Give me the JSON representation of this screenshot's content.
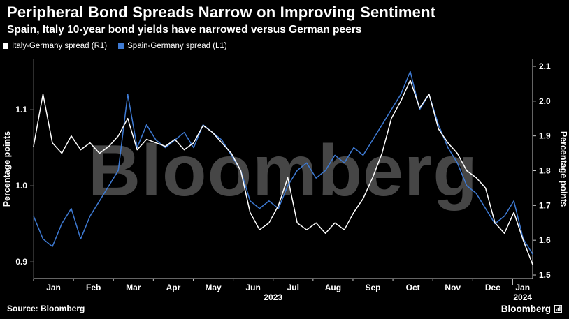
{
  "header": {
    "title": "Peripheral Bond Spreads Narrow on Improving Sentiment",
    "subtitle": "Spain, Italy 10-year bond yields have narrowed versus German peers"
  },
  "legend": [
    {
      "label": "Italy-Germany spread (R1)",
      "color": "#ffffff"
    },
    {
      "label": "Spain-Germany spread (L1)",
      "color": "#3e7ad3"
    }
  ],
  "chart_data": {
    "type": "line",
    "watermark": "Bloomberg",
    "x_months": [
      "Jan",
      "Feb",
      "Mar",
      "Apr",
      "May",
      "Jun",
      "Jul",
      "Aug",
      "Sep",
      "Oct",
      "Nov",
      "Dec",
      "Jan"
    ],
    "year_labels": [
      "2023",
      "2024"
    ],
    "left_axis": {
      "label": "Percentage points",
      "ticks": [
        1.1,
        1.0,
        0.9
      ],
      "domain": [
        0.878,
        1.166
      ]
    },
    "right_axis": {
      "label": "Percentage points",
      "ticks": [
        2.1,
        2.0,
        1.9,
        1.8,
        1.7,
        1.6,
        1.5
      ],
      "domain": [
        1.49,
        2.12
      ]
    },
    "series": [
      {
        "name": "Spain-Germany spread (L1)",
        "axis": "left",
        "color": "#3e7ad3",
        "values": [
          0.96,
          0.93,
          0.92,
          0.95,
          0.97,
          0.93,
          0.96,
          0.98,
          1.0,
          1.02,
          1.12,
          1.05,
          1.08,
          1.06,
          1.05,
          1.06,
          1.07,
          1.05,
          1.08,
          1.07,
          1.06,
          1.04,
          1.02,
          0.98,
          0.97,
          0.98,
          0.97,
          1.0,
          1.02,
          1.03,
          1.01,
          1.02,
          1.04,
          1.03,
          1.05,
          1.04,
          1.06,
          1.08,
          1.1,
          1.12,
          1.15,
          1.1,
          1.12,
          1.08,
          1.05,
          1.03,
          1.0,
          0.99,
          0.97,
          0.95,
          0.96,
          0.98,
          0.93,
          0.91
        ]
      },
      {
        "name": "Italy-Germany spread (R1)",
        "axis": "right",
        "color": "#ffffff",
        "values": [
          1.87,
          2.02,
          1.88,
          1.85,
          1.9,
          1.86,
          1.88,
          1.85,
          1.87,
          1.9,
          1.95,
          1.86,
          1.89,
          1.88,
          1.87,
          1.89,
          1.86,
          1.88,
          1.93,
          1.91,
          1.88,
          1.85,
          1.8,
          1.68,
          1.63,
          1.65,
          1.7,
          1.78,
          1.65,
          1.63,
          1.65,
          1.62,
          1.65,
          1.63,
          1.68,
          1.72,
          1.78,
          1.85,
          1.95,
          2.0,
          2.06,
          1.98,
          2.02,
          1.92,
          1.88,
          1.85,
          1.8,
          1.78,
          1.75,
          1.65,
          1.62,
          1.68,
          1.6,
          1.53
        ]
      }
    ]
  },
  "footer": {
    "source": "Source: Bloomberg",
    "brand": "Bloomberg"
  }
}
